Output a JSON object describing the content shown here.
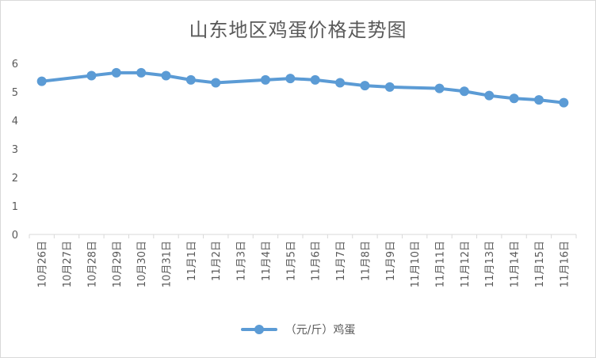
{
  "chart_data": {
    "type": "line",
    "title": "山东地区鸡蛋价格走势图",
    "categories": [
      "10月26日",
      "10月27日",
      "10月28日",
      "10月29日",
      "10月30日",
      "10月31日",
      "11月1日",
      "11月2日",
      "11月3日",
      "11月4日",
      "11月5日",
      "11月6日",
      "11月7日",
      "11月8日",
      "11月9日",
      "11月10日",
      "11月11日",
      "11月12日",
      "11月13日",
      "11月14日",
      "11月15日",
      "11月16日"
    ],
    "series": [
      {
        "name": "（元/斤）鸡蛋",
        "values": [
          5.37,
          null,
          5.57,
          5.67,
          5.67,
          5.57,
          5.42,
          5.32,
          null,
          5.42,
          5.47,
          5.42,
          5.32,
          5.22,
          5.17,
          null,
          5.12,
          5.02,
          4.87,
          4.77,
          4.72,
          4.62
        ]
      }
    ],
    "ylim": [
      0,
      6
    ],
    "yticks": [
      0,
      1,
      2,
      3,
      4,
      5,
      6
    ],
    "grid": false,
    "legend": "bottom",
    "colors": {
      "series": "#5b9bd5",
      "axis": "#d9d9d9",
      "text": "#595959"
    }
  }
}
